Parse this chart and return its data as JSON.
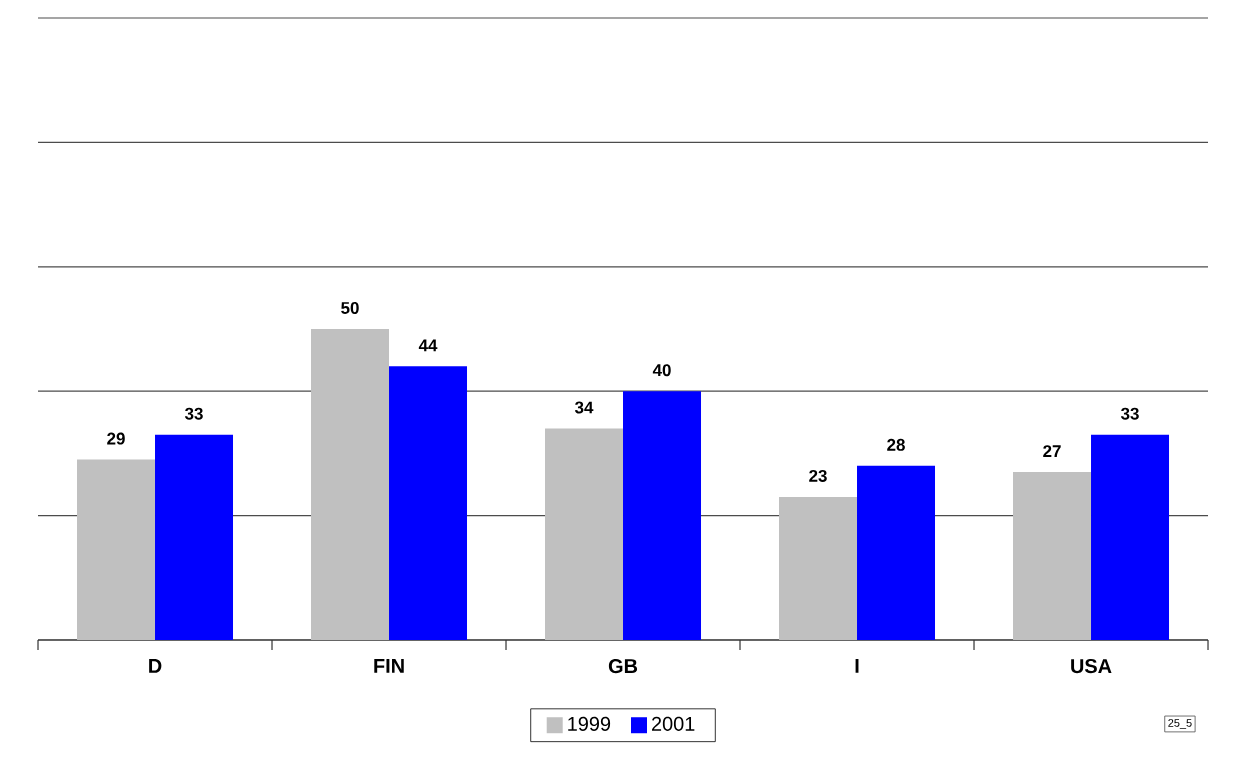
{
  "chart_data": {
    "type": "bar",
    "categories": [
      "D",
      "FIN",
      "GB",
      "I",
      "USA"
    ],
    "series": [
      {
        "name": "1999",
        "color": "#c0c0c0",
        "values": [
          29,
          50,
          34,
          23,
          27
        ]
      },
      {
        "name": "2001",
        "color": "#0000ff",
        "values": [
          33,
          44,
          40,
          28,
          33
        ]
      }
    ],
    "ylim": [
      0,
      100
    ],
    "yticks": [
      {
        "value": 0,
        "label": null
      },
      {
        "value": 20,
        "label": null
      },
      {
        "value": 40,
        "label": null
      },
      {
        "value": 60,
        "label": null
      },
      {
        "value": 80,
        "label": null
      },
      {
        "value": 100,
        "label": null
      }
    ],
    "tick_labels": "x",
    "grid": "y",
    "legend": "bottom",
    "data_labels": true,
    "annotations": [
      "25_5"
    ]
  }
}
